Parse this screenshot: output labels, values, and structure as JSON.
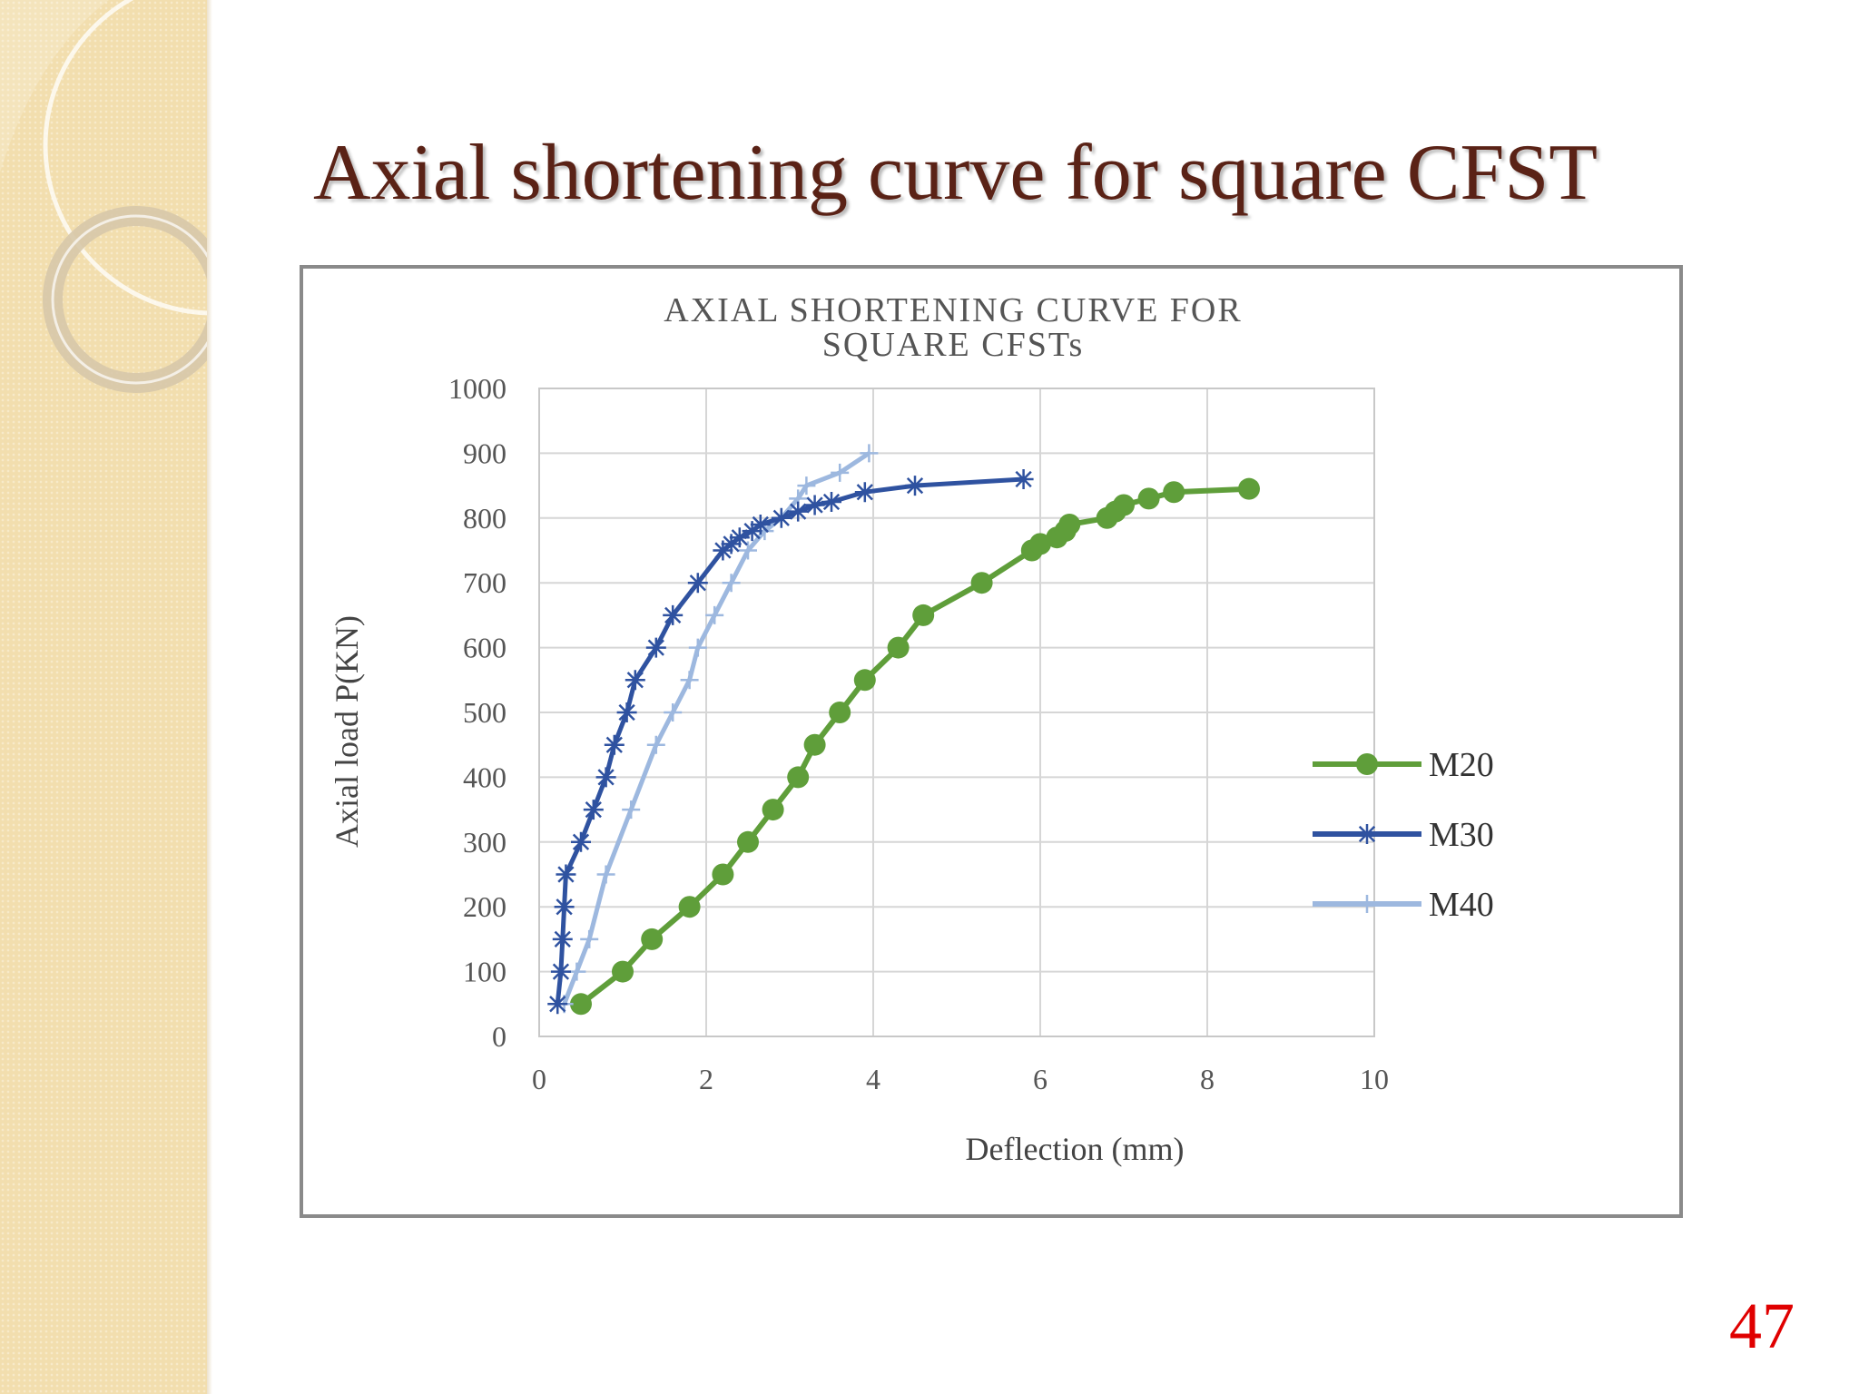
{
  "slide": {
    "title": "Axial shortening curve for square CFST",
    "page_number": "47",
    "colors": {
      "title": "#5a2216",
      "page_number": "#e00000",
      "sidebar": "#f2deae"
    }
  },
  "chart_data": {
    "type": "line",
    "title": [
      "AXIAL SHORTENING CURVE FOR",
      "SQUARE CFSTs"
    ],
    "xlabel": "Deflection (mm)",
    "ylabel": "Axial load P(KN)",
    "xlim": [
      0,
      10
    ],
    "ylim": [
      0,
      1000
    ],
    "x_ticks": [
      0,
      2,
      4,
      6,
      8,
      10
    ],
    "y_ticks": [
      0,
      100,
      200,
      300,
      400,
      500,
      600,
      700,
      800,
      900,
      1000
    ],
    "grid": true,
    "legend_position": "right",
    "series": [
      {
        "name": "M20",
        "color": "#5f9e3a",
        "marker": "circle",
        "points": [
          [
            0.5,
            50
          ],
          [
            1.0,
            100
          ],
          [
            1.35,
            150
          ],
          [
            1.8,
            200
          ],
          [
            2.2,
            250
          ],
          [
            2.5,
            300
          ],
          [
            2.8,
            350
          ],
          [
            3.1,
            400
          ],
          [
            3.3,
            450
          ],
          [
            3.6,
            500
          ],
          [
            3.9,
            550
          ],
          [
            4.3,
            600
          ],
          [
            4.6,
            650
          ],
          [
            5.3,
            700
          ],
          [
            5.9,
            750
          ],
          [
            6.0,
            760
          ],
          [
            6.2,
            770
          ],
          [
            6.3,
            780
          ],
          [
            6.35,
            790
          ],
          [
            6.8,
            800
          ],
          [
            6.9,
            810
          ],
          [
            7.0,
            820
          ],
          [
            7.3,
            830
          ],
          [
            7.6,
            840
          ],
          [
            8.5,
            845
          ]
        ]
      },
      {
        "name": "M30",
        "color": "#2f52a0",
        "marker": "star",
        "points": [
          [
            0.22,
            50
          ],
          [
            0.26,
            100
          ],
          [
            0.28,
            150
          ],
          [
            0.3,
            200
          ],
          [
            0.32,
            250
          ],
          [
            0.5,
            300
          ],
          [
            0.65,
            350
          ],
          [
            0.8,
            400
          ],
          [
            0.9,
            450
          ],
          [
            1.05,
            500
          ],
          [
            1.15,
            550
          ],
          [
            1.4,
            600
          ],
          [
            1.6,
            650
          ],
          [
            1.9,
            700
          ],
          [
            2.2,
            750
          ],
          [
            2.3,
            760
          ],
          [
            2.4,
            770
          ],
          [
            2.55,
            780
          ],
          [
            2.65,
            790
          ],
          [
            2.9,
            800
          ],
          [
            3.1,
            810
          ],
          [
            3.3,
            820
          ],
          [
            3.5,
            825
          ],
          [
            3.9,
            840
          ],
          [
            4.5,
            850
          ],
          [
            5.8,
            860
          ]
        ]
      },
      {
        "name": "M40",
        "color": "#9db8df",
        "marker": "plus",
        "points": [
          [
            0.3,
            50
          ],
          [
            0.45,
            100
          ],
          [
            0.6,
            150
          ],
          [
            0.8,
            250
          ],
          [
            1.1,
            350
          ],
          [
            1.4,
            450
          ],
          [
            1.6,
            500
          ],
          [
            1.8,
            550
          ],
          [
            1.9,
            600
          ],
          [
            2.1,
            650
          ],
          [
            2.3,
            700
          ],
          [
            2.5,
            750
          ],
          [
            2.7,
            780
          ],
          [
            2.9,
            800
          ],
          [
            3.1,
            830
          ],
          [
            3.2,
            850
          ],
          [
            3.6,
            870
          ],
          [
            3.95,
            900
          ]
        ]
      }
    ]
  }
}
